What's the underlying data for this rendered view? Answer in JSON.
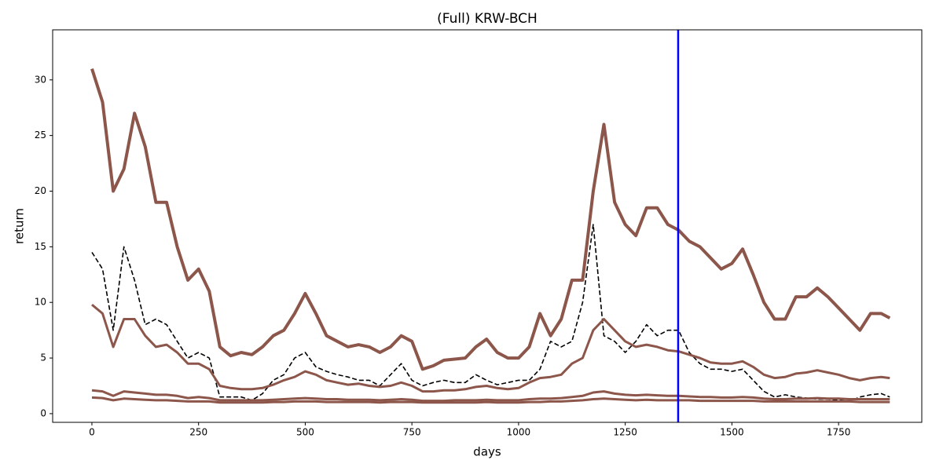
{
  "chart_data": {
    "type": "line",
    "title": "(Full) KRW-BCH",
    "x_label": "days",
    "y_label": "return",
    "x": [
      0,
      25,
      50,
      75,
      100,
      125,
      150,
      175,
      200,
      225,
      250,
      275,
      300,
      325,
      350,
      375,
      400,
      425,
      450,
      475,
      500,
      525,
      550,
      575,
      600,
      625,
      650,
      675,
      700,
      725,
      750,
      775,
      800,
      825,
      850,
      875,
      900,
      925,
      950,
      975,
      1000,
      1025,
      1050,
      1075,
      1100,
      1125,
      1150,
      1175,
      1200,
      1225,
      1250,
      1275,
      1300,
      1325,
      1350,
      1375,
      1400,
      1425,
      1450,
      1475,
      1500,
      1525,
      1550,
      1575,
      1600,
      1625,
      1650,
      1675,
      1700,
      1725,
      1750,
      1775,
      1800,
      1825,
      1850,
      1870
    ],
    "series": [
      {
        "color": "#8c564b",
        "width": 4,
        "dashed": false,
        "values": [
          31,
          28,
          20,
          22,
          27,
          24,
          19,
          19,
          15,
          12,
          13,
          11,
          6,
          5.2,
          5.5,
          5.3,
          6,
          7,
          7.5,
          9,
          10.8,
          9,
          7,
          6.5,
          6,
          6.2,
          6,
          5.5,
          6,
          7,
          6.5,
          4,
          4.3,
          4.8,
          4.9,
          5,
          6,
          6.7,
          5.5,
          5,
          5,
          6,
          9,
          7,
          8.5,
          12,
          12,
          20,
          26,
          19,
          17,
          16,
          18.5,
          18.5,
          17,
          16.5,
          15.5,
          15,
          14,
          13,
          13.5,
          14.8,
          12.5,
          10,
          8.5,
          8.5,
          10.5,
          10.5,
          11.3,
          10.5,
          9.5,
          8.5,
          7.5,
          9,
          9,
          8.6
        ]
      },
      {
        "color": "#000000",
        "width": 1.6,
        "dashed": true,
        "values": [
          14.5,
          13,
          7.5,
          15,
          12,
          8,
          8.5,
          8,
          6.5,
          5,
          5.5,
          5,
          1.5,
          1.5,
          1.5,
          1.2,
          1.8,
          3,
          3.5,
          5,
          5.5,
          4.2,
          3.8,
          3.5,
          3.3,
          3,
          3,
          2.5,
          3.5,
          4.5,
          3,
          2.5,
          2.8,
          3,
          2.8,
          2.8,
          3.5,
          3,
          2.6,
          2.8,
          3,
          3,
          4,
          6.5,
          6,
          6.5,
          10,
          17,
          7,
          6.5,
          5.5,
          6.5,
          8,
          7,
          7.5,
          7.5,
          5.5,
          4.5,
          4,
          4,
          3.8,
          4,
          3,
          2,
          1.5,
          1.7,
          1.5,
          1.4,
          1.3,
          1.3,
          1.2,
          1.1,
          1.5,
          1.7,
          1.8,
          1.5
        ]
      },
      {
        "color": "#8c564b",
        "width": 3,
        "dashed": false,
        "values": [
          9.8,
          9,
          6,
          8.5,
          8.5,
          7,
          6,
          6.2,
          5.5,
          4.5,
          4.5,
          4,
          2.5,
          2.3,
          2.2,
          2.2,
          2.3,
          2.6,
          3,
          3.3,
          3.8,
          3.5,
          3,
          2.8,
          2.6,
          2.7,
          2.5,
          2.4,
          2.5,
          2.8,
          2.5,
          2,
          2,
          2.1,
          2.1,
          2.2,
          2.4,
          2.5,
          2.3,
          2.2,
          2.3,
          2.8,
          3.2,
          3.3,
          3.5,
          4.5,
          5,
          7.5,
          8.5,
          7.5,
          6.5,
          6,
          6.2,
          6,
          5.7,
          5.6,
          5.3,
          5,
          4.6,
          4.5,
          4.5,
          4.7,
          4.2,
          3.5,
          3.2,
          3.3,
          3.6,
          3.7,
          3.9,
          3.7,
          3.5,
          3.2,
          3,
          3.2,
          3.3,
          3.2
        ]
      },
      {
        "color": "#8c564b",
        "width": 3,
        "dashed": false,
        "values": [
          2.1,
          2.0,
          1.6,
          2.0,
          1.9,
          1.8,
          1.7,
          1.7,
          1.6,
          1.4,
          1.5,
          1.4,
          1.2,
          1.2,
          1.2,
          1.2,
          1.2,
          1.25,
          1.3,
          1.35,
          1.4,
          1.35,
          1.3,
          1.3,
          1.25,
          1.25,
          1.25,
          1.2,
          1.25,
          1.3,
          1.25,
          1.15,
          1.15,
          1.15,
          1.2,
          1.2,
          1.2,
          1.25,
          1.2,
          1.2,
          1.2,
          1.3,
          1.35,
          1.35,
          1.4,
          1.5,
          1.6,
          1.9,
          2.0,
          1.8,
          1.7,
          1.65,
          1.7,
          1.65,
          1.6,
          1.6,
          1.55,
          1.5,
          1.5,
          1.45,
          1.45,
          1.5,
          1.45,
          1.35,
          1.3,
          1.3,
          1.35,
          1.35,
          1.4,
          1.35,
          1.35,
          1.3,
          1.3,
          1.3,
          1.3,
          1.3
        ]
      },
      {
        "color": "#8c564b",
        "width": 3,
        "dashed": false,
        "values": [
          1.45,
          1.4,
          1.2,
          1.35,
          1.3,
          1.25,
          1.2,
          1.2,
          1.15,
          1.1,
          1.1,
          1.1,
          1.0,
          1.0,
          1.0,
          1.0,
          1.0,
          1.05,
          1.05,
          1.1,
          1.1,
          1.1,
          1.05,
          1.05,
          1.05,
          1.05,
          1.05,
          1.0,
          1.05,
          1.05,
          1.05,
          1.0,
          1.0,
          1.0,
          1.0,
          1.0,
          1.0,
          1.05,
          1.0,
          1.0,
          1.0,
          1.05,
          1.05,
          1.1,
          1.1,
          1.15,
          1.2,
          1.3,
          1.35,
          1.3,
          1.25,
          1.2,
          1.25,
          1.2,
          1.2,
          1.2,
          1.2,
          1.15,
          1.15,
          1.15,
          1.15,
          1.15,
          1.15,
          1.1,
          1.1,
          1.1,
          1.1,
          1.1,
          1.1,
          1.1,
          1.1,
          1.1,
          1.05,
          1.05,
          1.05,
          1.05
        ]
      }
    ],
    "vline": {
      "x": 1374,
      "color": "#0000ff"
    },
    "xlim": [
      -92,
      1945
    ],
    "ylim": [
      -0.78,
      34.5
    ],
    "xticks": [
      0,
      250,
      500,
      750,
      1000,
      1250,
      1500,
      1750
    ],
    "yticks": [
      0,
      5,
      10,
      15,
      20,
      25,
      30
    ],
    "grid": false
  }
}
